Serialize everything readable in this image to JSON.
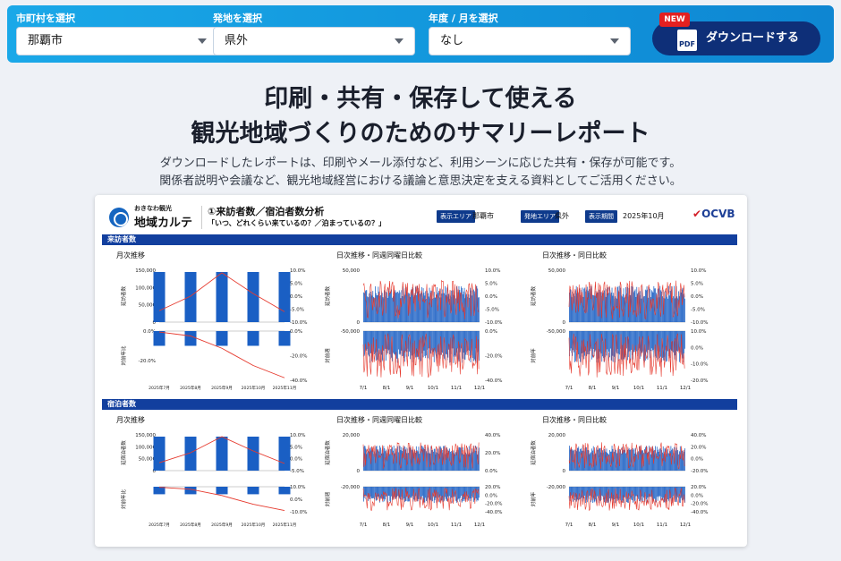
{
  "filters": [
    {
      "label": "市町村を選択",
      "value": "那覇市"
    },
    {
      "label": "発地を選択",
      "value": "県外"
    },
    {
      "label": "年度 / 月を選択",
      "value": "なし"
    }
  ],
  "download": {
    "label": "ダウンロードする",
    "badge": "NEW",
    "icon_text": "PDF"
  },
  "headline": {
    "line1": "印刷・共有・保存して使える",
    "line2": "観光地域づくりのためのサマリーレポート"
  },
  "subtext": {
    "line1": "ダウンロードしたレポートは、印刷やメール添付など、利用シーンに応じた共有・保存が可能です。",
    "line2": "関係者説明や会議など、観光地域経営における議論と意思決定を支える資料としてご活用ください。"
  },
  "report": {
    "brand_small": "おきなわ観光",
    "brand_big": "地域カルテ",
    "title": "①来訪者数／宿泊者数分析",
    "subtitle": "「いつ、どれくらい来ているの？／泊まっているの？」",
    "tags": [
      {
        "label": "表示エリア",
        "value": "那覇市"
      },
      {
        "label": "発地エリア",
        "value": "県外"
      },
      {
        "label": "表示期間",
        "value": "2025年10月"
      }
    ],
    "org_logo": "OCVB",
    "sections": [
      {
        "band": "来訪者数",
        "panels": [
          {
            "title": "月次推移",
            "top_ylabel": "延訪者数",
            "bottom_ylabel": "対前年比",
            "x_ticks": [
              "2025年7月",
              "2025年8月",
              "2025年9月",
              "2025年10月",
              "2025年11月"
            ],
            "left_top_ticks": [
              "150,000",
              "100,000",
              "50,000",
              "0"
            ],
            "right_top_ticks": [
              "10.0%",
              "5.0%",
              "0.0%",
              "-5.0%",
              "-10.0%"
            ],
            "left_bottom_ticks": [
              "0.0%",
              "-20.0%"
            ],
            "right_bottom_ticks": [
              "0.0%",
              "-20.0%",
              "-40.0%"
            ]
          },
          {
            "title": "日次推移・同週同曜日比較",
            "top_ylabel": "延訪者数",
            "bottom_ylabel": "対前週",
            "x_ticks": [
              "7/1",
              "8/1",
              "9/1",
              "10/1",
              "11/1",
              "12/1"
            ],
            "left_top_ticks": [
              "50,000",
              "0"
            ],
            "right_top_ticks": [
              "10.0%",
              "5.0%",
              "0.0%",
              "-5.0%",
              "-10.0%"
            ],
            "left_bottom_ticks": [
              "-50,000"
            ],
            "right_bottom_ticks": [
              "0.0%",
              "-20.0%",
              "-40.0%"
            ]
          },
          {
            "title": "日次推移・同日比較",
            "top_ylabel": "延訪者数",
            "bottom_ylabel": "対前年",
            "x_ticks": [
              "7/1",
              "8/1",
              "9/1",
              "10/1",
              "11/1",
              "12/1"
            ],
            "left_top_ticks": [
              "50,000",
              "0"
            ],
            "right_top_ticks": [
              "10.0%",
              "5.0%",
              "0.0%",
              "-5.0%",
              "-10.0%"
            ],
            "left_bottom_ticks": [
              "-50,000"
            ],
            "right_bottom_ticks": [
              "10.0%",
              "0.0%",
              "-10.0%",
              "-20.0%"
            ]
          }
        ]
      },
      {
        "band": "宿泊者数",
        "panels": [
          {
            "title": "月次推移",
            "top_ylabel": "延宿泊者数",
            "bottom_ylabel": "対前年比",
            "x_ticks": [
              "2025年7月",
              "2025年8月",
              "2025年9月",
              "2025年10月",
              "2025年11月"
            ],
            "left_top_ticks": [
              "150,000",
              "100,000",
              "50,000",
              "0"
            ],
            "right_top_ticks": [
              "10.0%",
              "5.0%",
              "0.0%",
              "-5.0%"
            ],
            "left_bottom_ticks": [],
            "right_bottom_ticks": [
              "10.0%",
              "0.0%",
              "-10.0%"
            ]
          },
          {
            "title": "日次推移・同週同曜日比較",
            "top_ylabel": "延宿泊者数",
            "bottom_ylabel": "対前週",
            "x_ticks": [
              "7/1",
              "8/1",
              "9/1",
              "10/1",
              "11/1",
              "12/1"
            ],
            "left_top_ticks": [
              "20,000",
              "0"
            ],
            "right_top_ticks": [
              "40.0%",
              "20.0%",
              "0.0%"
            ],
            "left_bottom_ticks": [
              "-20,000"
            ],
            "right_bottom_ticks": [
              "20.0%",
              "0.0%",
              "-20.0%",
              "-40.0%"
            ]
          },
          {
            "title": "日次推移・同日比較",
            "top_ylabel": "延宿泊者数",
            "bottom_ylabel": "対前年",
            "x_ticks": [
              "7/1",
              "8/1",
              "9/1",
              "10/1",
              "11/1",
              "12/1"
            ],
            "left_top_ticks": [
              "20,000",
              "0"
            ],
            "right_top_ticks": [
              "40.0%",
              "20.0%",
              "0.0%",
              "-20.0%"
            ],
            "left_bottom_ticks": [
              "-20,000"
            ],
            "right_bottom_ticks": [
              "20.0%",
              "0.0%",
              "-20.0%",
              "-40.0%"
            ]
          }
        ]
      }
    ]
  },
  "colors": {
    "accent": "#1296dc",
    "bar": "#1a5fc4",
    "line": "#e63a2e",
    "band": "#123f9e",
    "button": "#0e2f78"
  }
}
